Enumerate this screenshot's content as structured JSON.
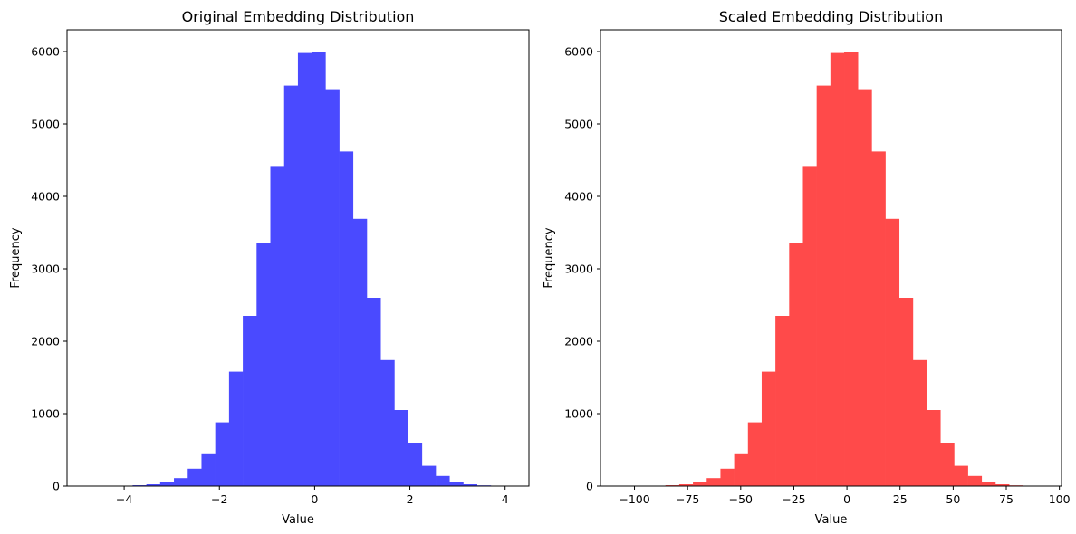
{
  "chart_data": [
    {
      "type": "bar",
      "title": "Original Embedding Distribution",
      "xlabel": "Value",
      "ylabel": "Frequency",
      "xlim": [
        -5.2,
        4.5
      ],
      "ylim": [
        0,
        6300
      ],
      "xticks": [
        -4,
        -2,
        0,
        2,
        4
      ],
      "xtick_labels": [
        "−4",
        "−2",
        "0",
        "2",
        "4"
      ],
      "yticks": [
        0,
        1000,
        2000,
        3000,
        4000,
        5000,
        6000
      ],
      "ytick_labels": [
        "0",
        "1000",
        "2000",
        "3000",
        "4000",
        "5000",
        "6000"
      ],
      "color": "#4a4aff",
      "grid": false,
      "bins": {
        "start": -4.98,
        "width": 0.2893,
        "counts": [
          1,
          0,
          2,
          5,
          12,
          25,
          50,
          110,
          240,
          440,
          880,
          1580,
          2350,
          3360,
          4420,
          5530,
          5980,
          5990,
          5480,
          4620,
          3690,
          2600,
          1740,
          1050,
          600,
          280,
          140,
          55,
          25,
          10,
          4,
          1
        ]
      }
    },
    {
      "type": "bar",
      "title": "Scaled Embedding Distribution",
      "xlabel": "Value",
      "ylabel": "Frequency",
      "xlim": [
        -116,
        101
      ],
      "ylim": [
        0,
        6300
      ],
      "xticks": [
        -100,
        -75,
        -50,
        -25,
        0,
        25,
        50,
        75,
        100
      ],
      "xtick_labels": [
        "−100",
        "−75",
        "−50",
        "−25",
        "0",
        "25",
        "50",
        "75",
        "100"
      ],
      "yticks": [
        0,
        1000,
        2000,
        3000,
        4000,
        5000,
        6000
      ],
      "ytick_labels": [
        "0",
        "1000",
        "2000",
        "3000",
        "4000",
        "5000",
        "6000"
      ],
      "color": "#ff4a4a",
      "grid": false,
      "bins": {
        "start": -111.3,
        "width": 6.47,
        "counts": [
          1,
          0,
          2,
          5,
          12,
          25,
          50,
          110,
          240,
          440,
          880,
          1580,
          2350,
          3360,
          4420,
          5530,
          5980,
          5990,
          5480,
          4620,
          3690,
          2600,
          1740,
          1050,
          600,
          280,
          140,
          55,
          25,
          10,
          4,
          1
        ]
      }
    }
  ]
}
